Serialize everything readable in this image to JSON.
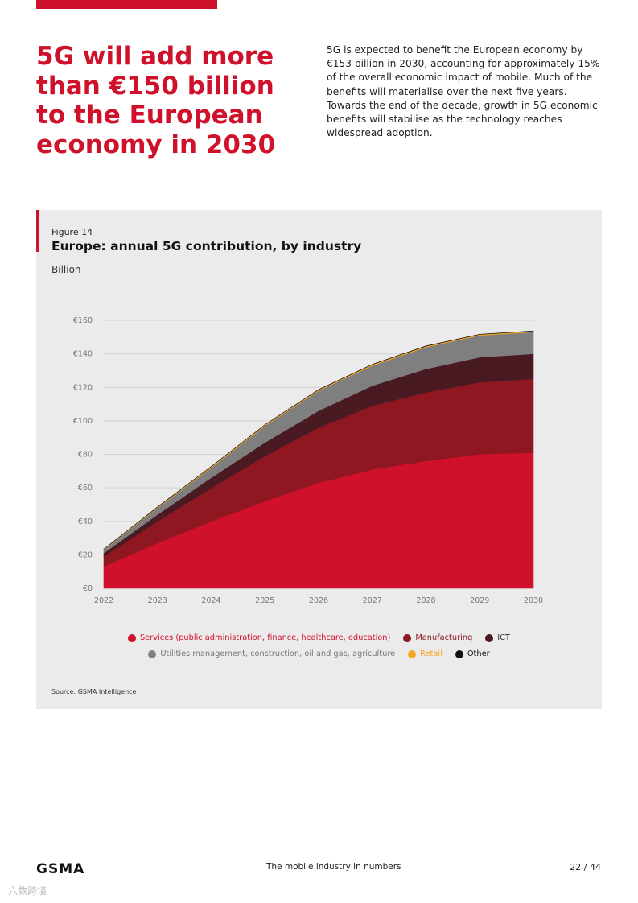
{
  "header": {
    "title": "5G will add more than €150 billion to the European economy in 2030",
    "intro": "5G is expected to benefit the European economy by €153 billion in 2030, accounting for approximately 15% of the overall economic impact of mobile. Much of the benefits will materialise over the next five years. Towards the end of the decade, growth in 5G economic benefits will stabilise as the technology reaches widespread adoption."
  },
  "figure": {
    "label": "Figure 14",
    "title": "Europe: annual 5G contribution, by industry",
    "units": "Billion",
    "source": "Source: GSMA Intelligence"
  },
  "chart_data": {
    "type": "area",
    "stacked": true,
    "title": "Europe: annual 5G contribution, by industry",
    "ylabel": "Billion",
    "xlabel": "",
    "x": [
      2022,
      2023,
      2024,
      2025,
      2026,
      2027,
      2028,
      2029,
      2030
    ],
    "x_tick_labels": [
      "2022",
      "2023",
      "2024",
      "2025",
      "2026",
      "2027",
      "2028",
      "2029",
      "2030"
    ],
    "ylim": [
      0,
      160
    ],
    "y_ticks": [
      0,
      20,
      40,
      60,
      80,
      100,
      120,
      140,
      160
    ],
    "y_tick_labels": [
      "€0",
      "€20",
      "€40",
      "€60",
      "€80",
      "€100",
      "€120",
      "€140",
      "€160"
    ],
    "grid": true,
    "legend_position": "bottom",
    "series": [
      {
        "name": "Services (public administration, finance, healthcare, education)",
        "color": "#d0112b",
        "values": [
          13,
          27,
          40,
          52,
          63,
          71,
          76,
          80,
          81
        ]
      },
      {
        "name": "Manufacturing",
        "color": "#8f1722",
        "values": [
          6,
          13,
          20,
          27,
          33,
          38,
          41,
          43,
          44
        ]
      },
      {
        "name": "ICT",
        "color": "#4a1a22",
        "values": [
          2,
          4,
          6,
          8,
          10,
          12,
          14,
          15,
          15
        ]
      },
      {
        "name": "Utilities management, construction, oil and gas, agriculture",
        "color": "#7f7f7f",
        "values": [
          2,
          4,
          6,
          10,
          12,
          12,
          13,
          13,
          13
        ]
      },
      {
        "name": "Retail",
        "color": "#f5a623",
        "values": [
          0.3,
          0.5,
          0.6,
          0.6,
          0.6,
          0.6,
          0.6,
          0.6,
          0.6
        ]
      },
      {
        "name": "Other",
        "color": "#111111",
        "values": [
          0.1,
          0.1,
          0.1,
          0.1,
          0.1,
          0.1,
          0.1,
          0.1,
          0.1
        ]
      }
    ]
  },
  "legend": {
    "row1": [
      {
        "label": "Services (public administration, finance, healthcare, education)",
        "color": "#d0112b",
        "text_color": "#d0112b"
      },
      {
        "label": "Manufacturing",
        "color": "#8f1722",
        "text_color": "#8f1722"
      },
      {
        "label": "ICT",
        "color": "#4a1a22",
        "text_color": "#333333"
      }
    ],
    "row2": [
      {
        "label": "Utilities management, construction, oil and gas, agriculture",
        "color": "#7f7f7f",
        "text_color": "#777777"
      },
      {
        "label": "Retail",
        "color": "#f5a623",
        "text_color": "#f5a623"
      },
      {
        "label": "Other",
        "color": "#111111",
        "text_color": "#111111"
      }
    ]
  },
  "footer": {
    "brand": "GSMA",
    "center": "The mobile industry in numbers",
    "page": "22 / 44"
  },
  "watermark": "六数跨境"
}
